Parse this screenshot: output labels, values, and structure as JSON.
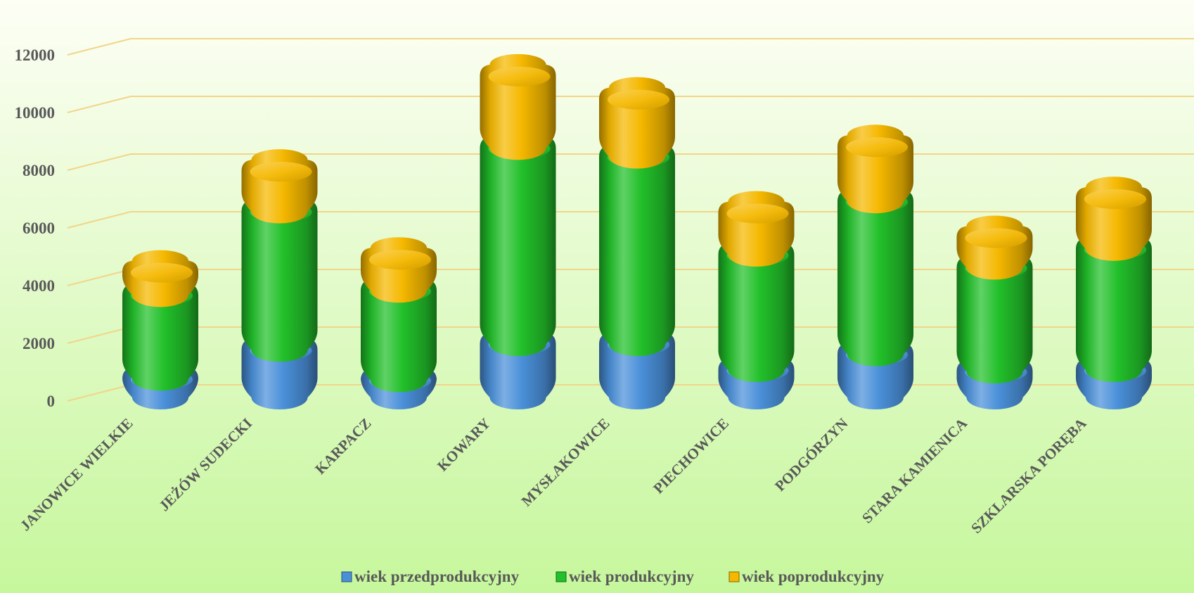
{
  "chart_data": {
    "type": "bar",
    "stacked": true,
    "style": "3d-cylinder",
    "categories": [
      "JANOWICE WIELKIE",
      "JEŻÓW SUDECKI",
      "KARPACZ",
      "KOWARY",
      "MYSŁAKOWICE",
      "PIECHOWICE",
      "PODGÓRZYN",
      "STARA KAMIENICA",
      "SZKLARSKA PORĘBA"
    ],
    "series": [
      {
        "name": "wiek przedprodukcyjny",
        "color": "#4a90d9",
        "values": [
          650,
          1650,
          600,
          1850,
          1850,
          950,
          1500,
          900,
          950
        ]
      },
      {
        "name": "wiek produkcyjny",
        "color": "#22c02a",
        "values": [
          2900,
          4800,
          3100,
          6800,
          6500,
          4000,
          5300,
          3600,
          4200
        ]
      },
      {
        "name": "wiek poprodukcyjny",
        "color": "#f5b800",
        "values": [
          800,
          1400,
          1100,
          2500,
          2000,
          1450,
          1900,
          1050,
          1750
        ]
      }
    ],
    "yticks": [
      0,
      2000,
      4000,
      6000,
      8000,
      10000,
      12000
    ],
    "ylim": [
      0,
      14000
    ],
    "grid": true,
    "legend_position": "bottom",
    "background": {
      "top": "#fdfef5",
      "bottom": "#c8f7a0"
    }
  }
}
